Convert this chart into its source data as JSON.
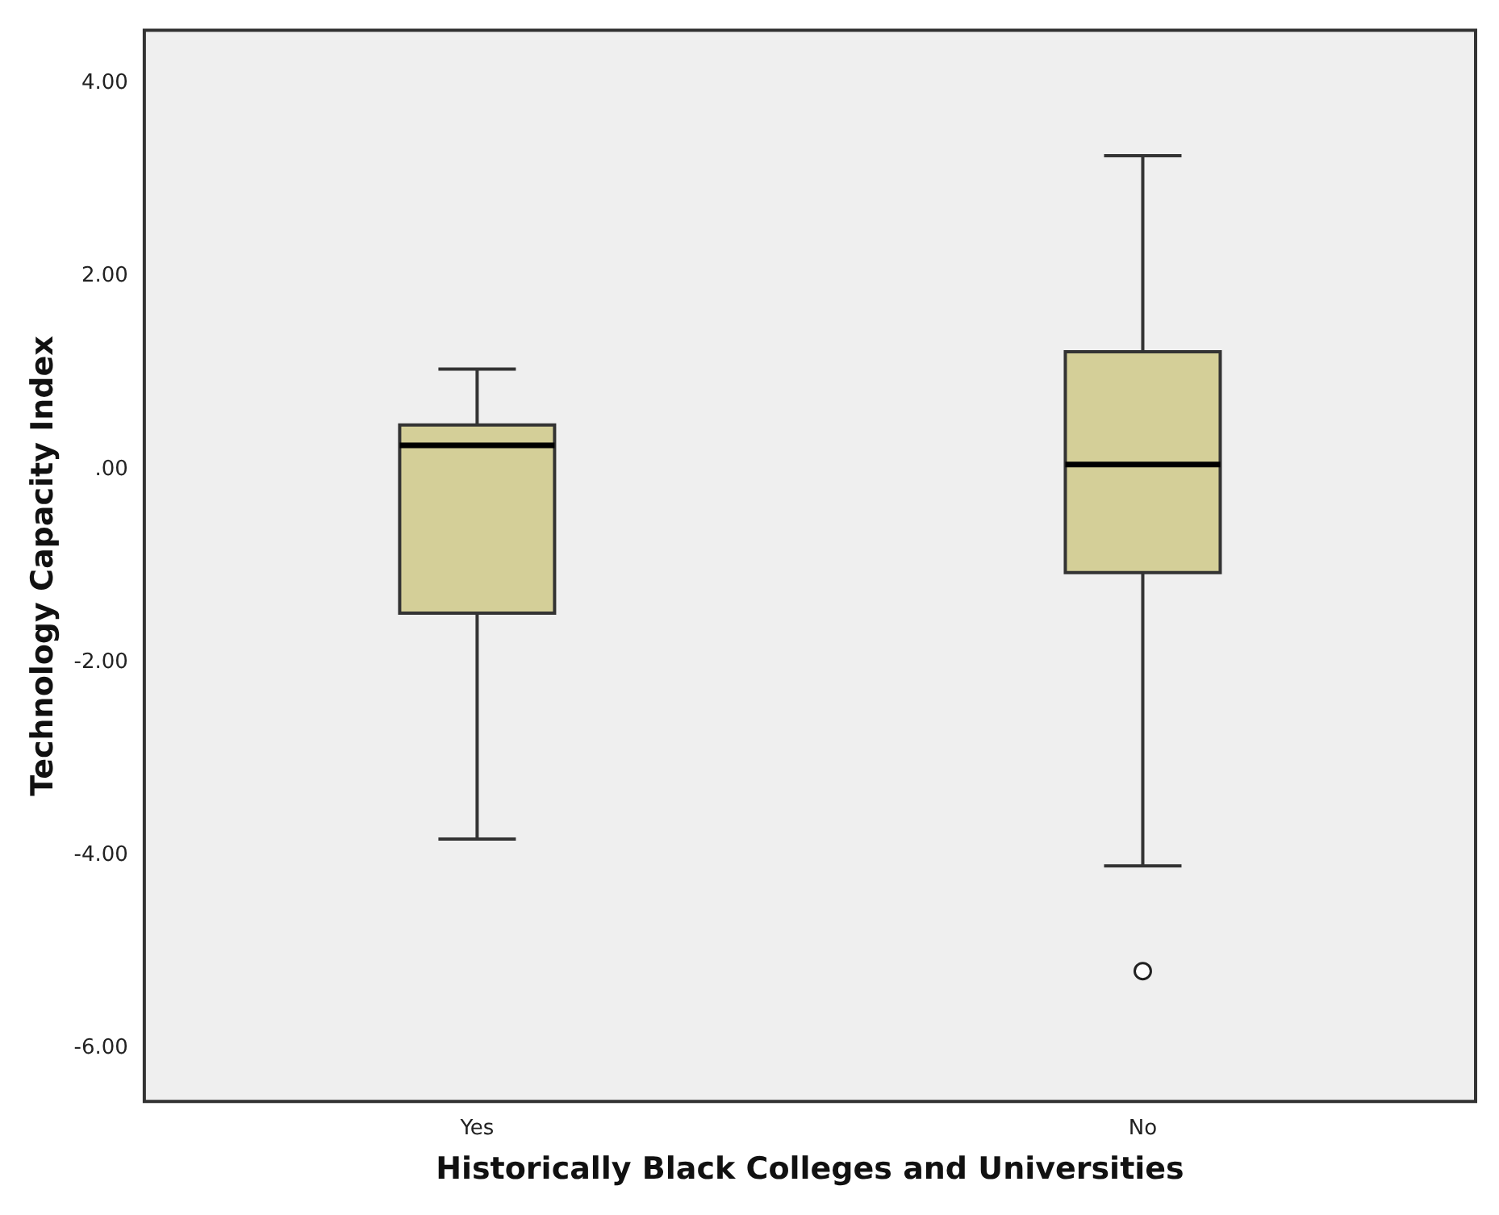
{
  "chart_data": {
    "type": "box",
    "xlabel": "Historically Black Colleges and Universities",
    "ylabel": "Technology Capacity Index",
    "categories": [
      "Yes",
      "No"
    ],
    "series": [
      {
        "color": "#d4cf98",
        "boxes": [
          {
            "low": -3.83,
            "q1": -1.49,
            "median": 0.25,
            "q3": 0.46,
            "high": 1.04
          },
          {
            "low": -4.11,
            "q1": -1.07,
            "median": 0.05,
            "q3": 1.22,
            "high": 3.25,
            "outliers": [
              -5.2
            ]
          }
        ]
      }
    ],
    "ylim": [
      -6.55,
      4.55
    ],
    "yticks": [
      {
        "value": -6,
        "label": "-6.00"
      },
      {
        "value": -4,
        "label": "-4.00"
      },
      {
        "value": -2,
        "label": "-2.00"
      },
      {
        "value": 0,
        "label": ".00"
      },
      {
        "value": 2,
        "label": "2.00"
      },
      {
        "value": 4,
        "label": "4.00"
      }
    ],
    "grid": false,
    "legend": false
  }
}
